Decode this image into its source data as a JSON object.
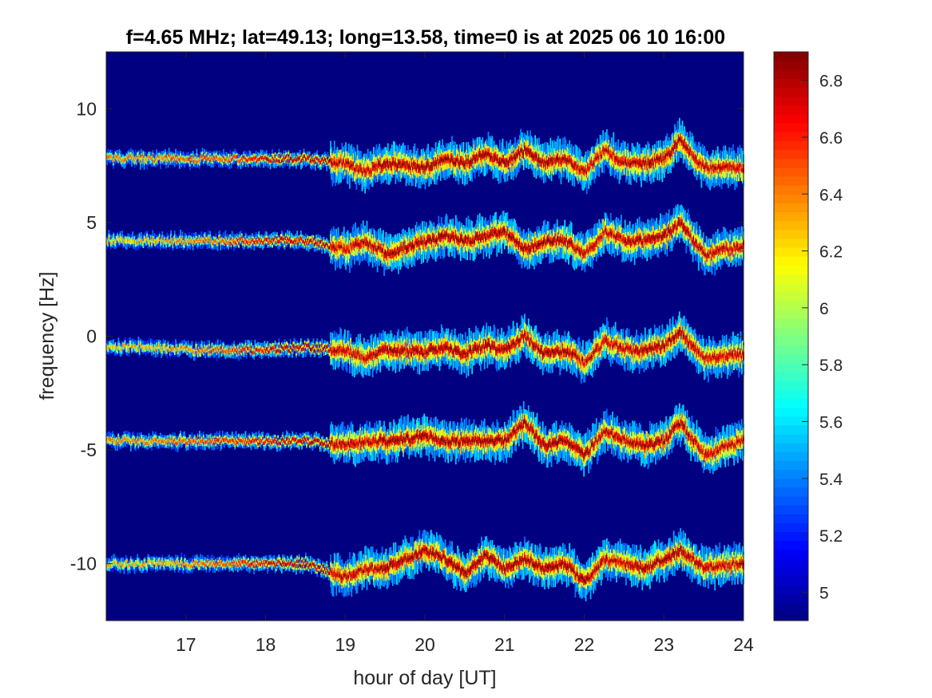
{
  "chart_data": {
    "type": "heatmap",
    "title": "f=4.65 MHz;  lat=49.13; long=13.58, time=0 is at 2025 06 10 16:00",
    "xlabel": "hour of day [UT]",
    "ylabel": "frequency [Hz]",
    "xlim": [
      16,
      24
    ],
    "ylim": [
      -12.5,
      12.5
    ],
    "x_ticks": [
      17,
      18,
      19,
      20,
      21,
      22,
      23,
      24
    ],
    "x_tick_labels": [
      "17",
      "18",
      "19",
      "20",
      "21",
      "22",
      "23",
      "24"
    ],
    "y_ticks": [
      10,
      5,
      0,
      -5,
      -10
    ],
    "y_tick_labels": [
      "10",
      "5",
      "0",
      "-5",
      "-10"
    ],
    "colorbar": {
      "colormap": "jet",
      "clim": [
        4.9,
        6.9
      ],
      "ticks": [
        5,
        5.2,
        5.4,
        5.6,
        5.8,
        6,
        6.2,
        6.4,
        6.6,
        6.8
      ],
      "tick_labels": [
        "5",
        "5.2",
        "5.4",
        "5.6",
        "5.8",
        "6",
        "6.2",
        "6.4",
        "6.6",
        "6.8"
      ]
    },
    "background_value": 4.9,
    "grid": false,
    "traces": [
      {
        "base_frequency": 7.8,
        "x": [
          16,
          16.5,
          17,
          17.5,
          18,
          18.5,
          19,
          19.25,
          19.5,
          20,
          20.25,
          20.5,
          20.75,
          21,
          21.25,
          21.5,
          21.75,
          22,
          22.25,
          22.5,
          22.75,
          23,
          23.2,
          23.5,
          24
        ],
        "y": [
          7.8,
          7.8,
          7.8,
          7.8,
          7.8,
          7.8,
          7.6,
          7.2,
          7.6,
          7.4,
          7.8,
          7.6,
          8.0,
          7.6,
          8.2,
          7.6,
          7.8,
          7.2,
          8.2,
          7.6,
          7.6,
          7.8,
          8.6,
          7.4,
          7.4
        ],
        "peak": [
          6.4,
          6.4,
          6.5,
          6.5,
          6.7,
          6.8,
          6.8,
          6.8,
          6.9,
          6.9,
          6.9,
          6.9,
          6.9,
          6.9,
          6.9,
          6.9,
          6.9,
          6.8,
          6.8,
          6.8,
          6.9,
          6.9,
          6.9,
          6.8,
          6.8
        ]
      },
      {
        "base_frequency": 4.2,
        "x": [
          16,
          16.5,
          17,
          17.5,
          18,
          18.5,
          19,
          19.25,
          19.5,
          20,
          20.25,
          20.5,
          20.75,
          21,
          21.25,
          21.5,
          21.75,
          22,
          22.25,
          22.5,
          22.75,
          23,
          23.2,
          23.5,
          24
        ],
        "y": [
          4.2,
          4.2,
          4.2,
          4.2,
          4.2,
          4.2,
          3.8,
          4.2,
          3.6,
          4.2,
          4.4,
          4.2,
          4.4,
          4.6,
          3.8,
          4.2,
          4.2,
          3.6,
          4.6,
          4.2,
          4.2,
          4.4,
          5.0,
          3.6,
          4.0
        ],
        "peak": [
          6.3,
          6.3,
          6.4,
          6.5,
          6.7,
          6.8,
          6.8,
          6.8,
          6.9,
          6.9,
          6.9,
          6.9,
          6.9,
          6.9,
          6.9,
          6.9,
          6.9,
          6.8,
          6.8,
          6.8,
          6.9,
          6.9,
          6.9,
          6.8,
          6.8
        ]
      },
      {
        "base_frequency": -0.5,
        "x": [
          16,
          16.5,
          17,
          17.5,
          18,
          18.5,
          19,
          19.25,
          19.5,
          20,
          20.25,
          20.5,
          20.75,
          21,
          21.25,
          21.5,
          21.75,
          22,
          22.25,
          22.5,
          22.75,
          23,
          23.2,
          23.5,
          24
        ],
        "y": [
          -0.5,
          -0.5,
          -0.6,
          -0.6,
          -0.6,
          -0.5,
          -0.6,
          -1.0,
          -0.6,
          -0.7,
          -0.5,
          -0.8,
          -0.4,
          -0.6,
          0.0,
          -0.8,
          -0.6,
          -1.2,
          -0.2,
          -0.6,
          -0.6,
          -0.4,
          0.2,
          -1.0,
          -0.8
        ],
        "peak": [
          6.3,
          6.3,
          6.4,
          6.5,
          6.7,
          6.8,
          6.8,
          6.8,
          6.9,
          6.9,
          6.9,
          6.9,
          6.9,
          6.9,
          6.9,
          6.9,
          6.9,
          6.8,
          6.8,
          6.8,
          6.9,
          6.9,
          6.9,
          6.8,
          6.8
        ]
      },
      {
        "base_frequency": -4.6,
        "x": [
          16,
          16.5,
          17,
          17.5,
          18,
          18.5,
          19,
          19.25,
          19.5,
          20,
          20.25,
          20.5,
          20.75,
          21,
          21.25,
          21.5,
          21.75,
          22,
          22.25,
          22.5,
          22.75,
          23,
          23.2,
          23.5,
          24
        ],
        "y": [
          -4.6,
          -4.6,
          -4.6,
          -4.6,
          -4.6,
          -4.6,
          -4.8,
          -4.6,
          -4.6,
          -4.4,
          -4.6,
          -4.6,
          -4.6,
          -4.6,
          -3.8,
          -4.8,
          -4.6,
          -5.2,
          -4.2,
          -4.6,
          -4.8,
          -4.6,
          -3.8,
          -5.2,
          -4.6
        ],
        "peak": [
          6.4,
          6.4,
          6.5,
          6.6,
          6.7,
          6.8,
          6.8,
          6.8,
          6.9,
          6.9,
          6.9,
          6.9,
          6.9,
          6.9,
          6.9,
          6.9,
          6.9,
          6.9,
          6.8,
          6.8,
          6.9,
          6.9,
          6.9,
          6.8,
          6.8
        ]
      },
      {
        "base_frequency": -10.0,
        "x": [
          16,
          16.5,
          17,
          17.5,
          18,
          18.5,
          19,
          19.25,
          19.5,
          20,
          20.25,
          20.5,
          20.75,
          21,
          21.25,
          21.5,
          21.75,
          22,
          22.25,
          22.5,
          22.75,
          23,
          23.2,
          23.5,
          24
        ],
        "y": [
          -10.0,
          -10.0,
          -10.0,
          -10.0,
          -10.0,
          -10.0,
          -10.6,
          -10.2,
          -10.2,
          -9.4,
          -9.8,
          -10.4,
          -9.6,
          -10.2,
          -9.8,
          -10.2,
          -10.0,
          -10.8,
          -9.8,
          -10.0,
          -10.2,
          -9.8,
          -9.4,
          -10.2,
          -10.0
        ],
        "peak": [
          6.3,
          6.3,
          6.4,
          6.5,
          6.7,
          6.8,
          6.8,
          6.8,
          6.9,
          6.9,
          6.9,
          6.9,
          6.9,
          6.9,
          6.9,
          6.9,
          6.9,
          6.9,
          6.8,
          6.8,
          6.9,
          6.9,
          6.9,
          6.8,
          6.8
        ]
      }
    ]
  }
}
